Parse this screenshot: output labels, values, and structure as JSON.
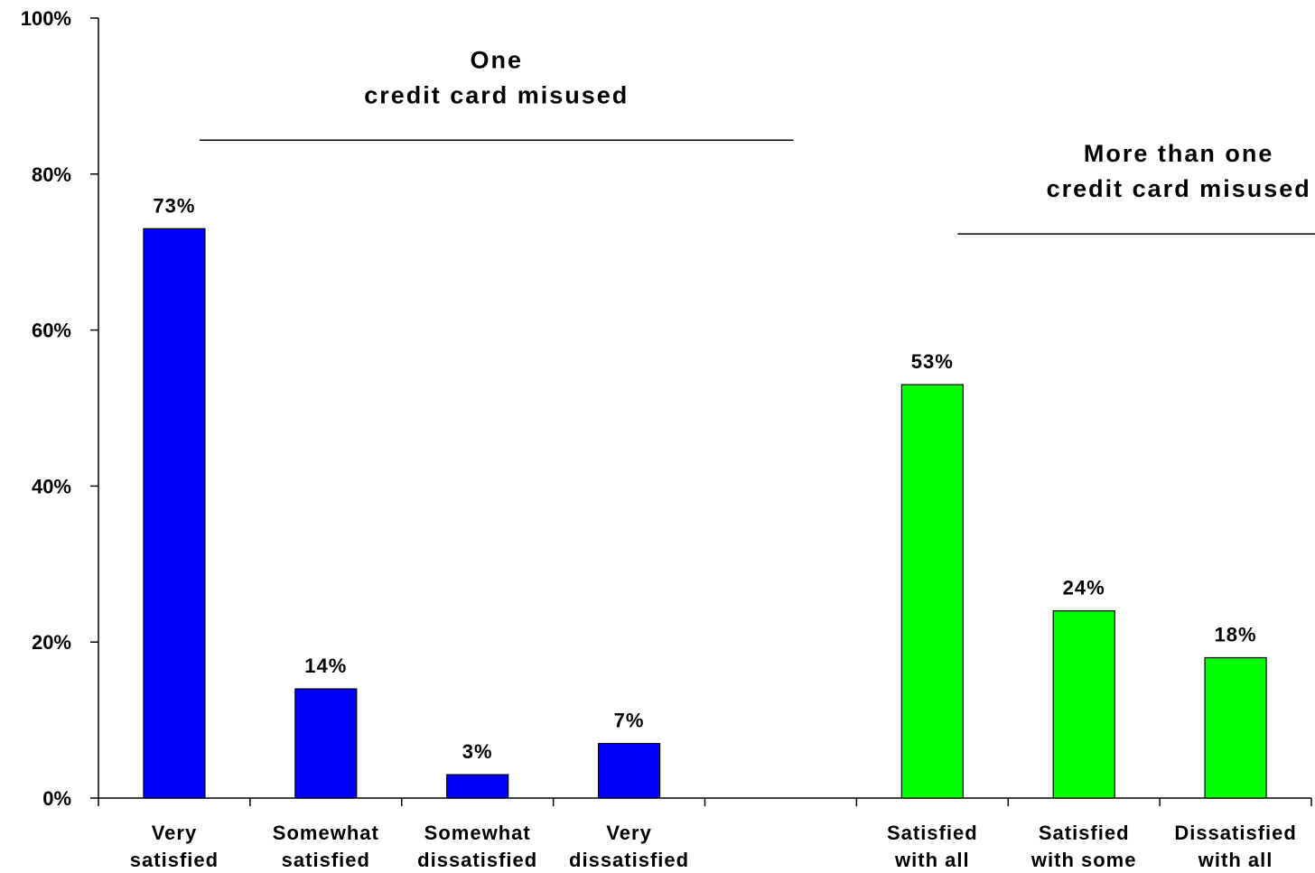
{
  "chart_data": {
    "type": "bar",
    "ylim": [
      0,
      100
    ],
    "yticks": [
      0,
      20,
      40,
      60,
      80,
      100
    ],
    "ytick_labels": [
      "0%",
      "20%",
      "40%",
      "60%",
      "80%",
      "100%"
    ],
    "grid": false,
    "categories": [
      [
        "Very",
        "satisfied"
      ],
      [
        "Somewhat",
        "satisfied"
      ],
      [
        "Somewhat",
        "dissatisfied"
      ],
      [
        "Very",
        "dissatisfied"
      ],
      [
        "",
        ""
      ],
      [
        "Satisfied",
        "with all"
      ],
      [
        "Satisfied",
        "with some"
      ],
      [
        "Dissatisfied",
        "with all"
      ]
    ],
    "values": [
      73,
      14,
      3,
      7,
      null,
      53,
      24,
      18
    ],
    "data_labels": [
      "73%",
      "14%",
      "3%",
      "7%",
      "",
      "53%",
      "24%",
      "18%"
    ],
    "bar_colors": [
      "#0000FF",
      "#0000FF",
      "#0000FF",
      "#0000FF",
      null,
      "#00FF00",
      "#00FF00",
      "#00FF00"
    ],
    "groups": [
      {
        "lines": [
          "One",
          "credit card misused"
        ],
        "categories": [
          0,
          3
        ]
      },
      {
        "lines": [
          "More than one",
          "credit card misused"
        ],
        "categories": [
          5,
          7
        ]
      }
    ]
  }
}
